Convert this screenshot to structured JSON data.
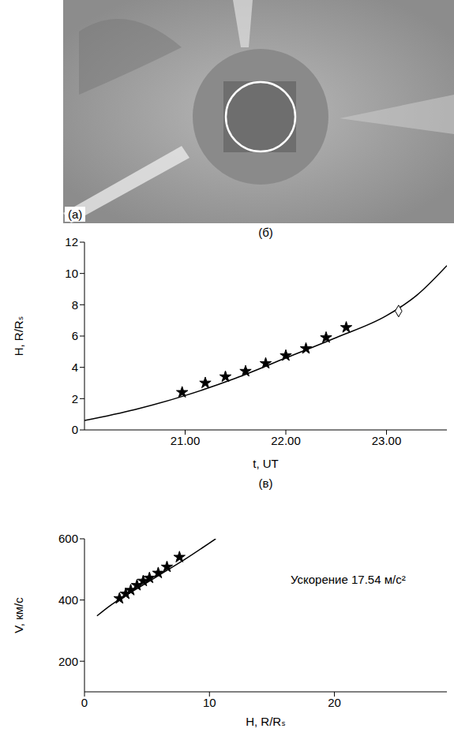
{
  "image": {
    "label": "(a)"
  },
  "chart_data": [
    {
      "type": "line",
      "title": "(б)",
      "x_label": "t, UT",
      "y_label": "H, R/Rₛ",
      "xlim": [
        20.0,
        23.6
      ],
      "xticks": [
        {
          "value": 21,
          "label": "21.00"
        },
        {
          "value": 22,
          "label": "22.00"
        },
        {
          "value": 23,
          "label": "23.00"
        }
      ],
      "ylim": [
        0,
        12
      ],
      "yticks": [
        0,
        2,
        4,
        6,
        8,
        10,
        12
      ],
      "series": [
        {
          "type": "line",
          "color": "#000000",
          "x": [
            20.0,
            20.5,
            21.0,
            21.5,
            22.0,
            22.5,
            23.0,
            23.3,
            23.6
          ],
          "values": [
            0.6,
            1.3,
            2.2,
            3.3,
            4.6,
            5.9,
            7.3,
            8.6,
            10.5
          ]
        },
        {
          "type": "scatter",
          "marker": "star",
          "color": "#000000",
          "x": [
            20.97,
            21.2,
            21.4,
            21.6,
            21.8,
            22.0,
            22.2,
            22.4,
            22.6
          ],
          "values": [
            2.4,
            3.0,
            3.4,
            3.75,
            4.25,
            4.75,
            5.2,
            5.9,
            6.55
          ]
        },
        {
          "type": "scatter",
          "marker": "diamond",
          "color": "#000000",
          "x": [
            23.12
          ],
          "values": [
            7.6
          ]
        }
      ]
    },
    {
      "type": "line",
      "title": "(в)",
      "x_label": "H, R/Rₛ",
      "y_label": "V, км/с",
      "xlim": [
        0,
        29
      ],
      "xticks": [
        0,
        10,
        20
      ],
      "ylim": [
        100,
        600
      ],
      "yticks": [
        200,
        400,
        600
      ],
      "annotations": [
        {
          "text": "Ускорение 17.54 м/с²"
        }
      ],
      "series": [
        {
          "type": "line",
          "color": "#000000",
          "x": [
            1,
            2,
            4,
            6,
            8,
            10.5
          ],
          "values": [
            348,
            380,
            432,
            482,
            532,
            600
          ]
        },
        {
          "type": "scatter",
          "marker": "star",
          "color": "#000000",
          "x": [
            2.8,
            3.3,
            3.7,
            4.2,
            4.7,
            5.2,
            5.9,
            6.6,
            7.6
          ],
          "values": [
            405,
            420,
            432,
            448,
            462,
            472,
            488,
            508,
            540
          ]
        }
      ]
    }
  ]
}
